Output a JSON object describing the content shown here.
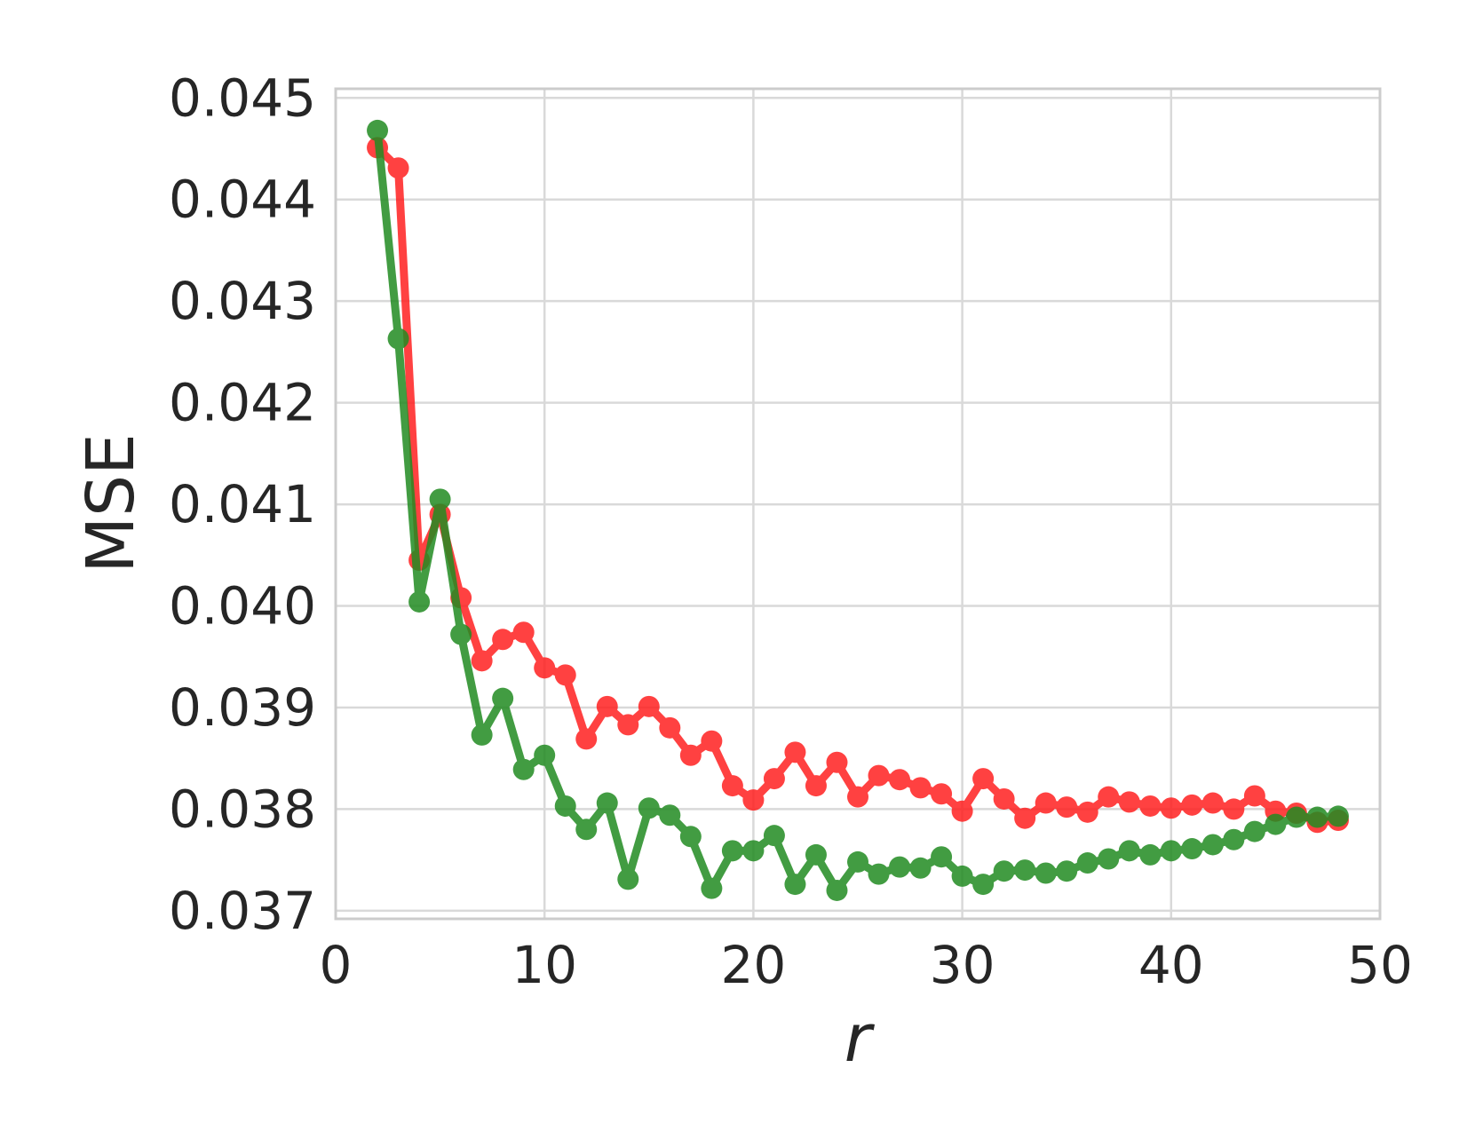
{
  "chart_data": {
    "type": "line",
    "title": "",
    "xlabel": "r",
    "ylabel": "MSE",
    "xlim": [
      0,
      50
    ],
    "ylim": [
      0.03692,
      0.04509
    ],
    "xticks": [
      0,
      10,
      20,
      30,
      40,
      50
    ],
    "xtick_labels": [
      "0",
      "10",
      "20",
      "30",
      "40",
      "50"
    ],
    "yticks": [
      0.037,
      0.038,
      0.039,
      0.04,
      0.041,
      0.042,
      0.043,
      0.044,
      0.045
    ],
    "ytick_labels": [
      "0.037",
      "0.038",
      "0.039",
      "0.040",
      "0.041",
      "0.042",
      "0.043",
      "0.044",
      "0.045"
    ],
    "grid": true,
    "legend": false,
    "x": [
      2,
      3,
      4,
      5,
      6,
      7,
      8,
      9,
      10,
      11,
      12,
      13,
      14,
      15,
      16,
      17,
      18,
      19,
      20,
      21,
      22,
      23,
      24,
      25,
      26,
      27,
      28,
      29,
      30,
      31,
      32,
      33,
      34,
      35,
      36,
      37,
      38,
      39,
      40,
      41,
      42,
      43,
      44,
      45,
      46,
      47,
      48
    ],
    "series": [
      {
        "color": "#ff2020",
        "values": [
          0.04451,
          0.04431,
          0.04045,
          0.0409,
          0.04008,
          0.03946,
          0.03967,
          0.03974,
          0.03939,
          0.03932,
          0.03869,
          0.03901,
          0.03883,
          0.03901,
          0.0388,
          0.03853,
          0.03867,
          0.03823,
          0.03809,
          0.0383,
          0.03856,
          0.03823,
          0.03846,
          0.03812,
          0.03833,
          0.03829,
          0.03821,
          0.03815,
          0.03798,
          0.0383,
          0.0381,
          0.03791,
          0.03806,
          0.03802,
          0.03797,
          0.03812,
          0.03807,
          0.03803,
          0.03801,
          0.03804,
          0.03806,
          0.038,
          0.03813,
          0.03798,
          0.03796,
          0.03787,
          0.03789
        ]
      },
      {
        "color": "#228b22",
        "values": [
          0.04468,
          0.04263,
          0.04004,
          0.04105,
          0.03972,
          0.03873,
          0.03909,
          0.03839,
          0.03853,
          0.03803,
          0.0378,
          0.03806,
          0.03731,
          0.03801,
          0.03794,
          0.03773,
          0.03722,
          0.03759,
          0.03759,
          0.03774,
          0.03726,
          0.03755,
          0.0372,
          0.03748,
          0.03736,
          0.03743,
          0.03742,
          0.03753,
          0.03734,
          0.03726,
          0.03739,
          0.0374,
          0.03737,
          0.03739,
          0.03747,
          0.03751,
          0.03759,
          0.03755,
          0.03759,
          0.03761,
          0.03765,
          0.0377,
          0.03778,
          0.03785,
          0.03792,
          0.03792,
          0.03793
        ]
      }
    ]
  }
}
